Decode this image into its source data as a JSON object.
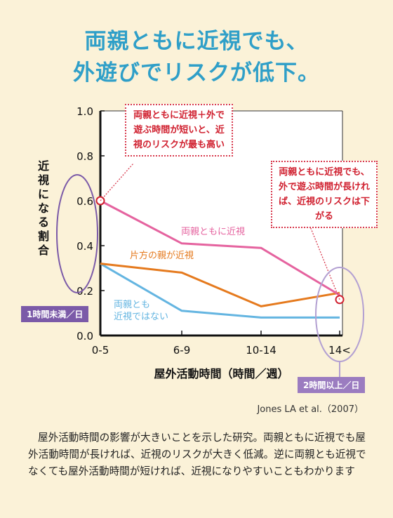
{
  "title_line1": "両親ともに近視でも、",
  "title_line2": "外遊びでリスクが低下。",
  "citation": "Jones LA et al.（2007）",
  "description": "屋外活動時間の影響が大きいことを示した研究。両親ともに近視でも屋外活動時間が長ければ、近視のリスクが大きく低減。逆に両親とも近視でなくても屋外活動時間が短ければ、近視になりやすいこともわかります",
  "callouts": {
    "high_risk": "両親ともに近視＋外で遊ぶ時間が短いと、近視のリスクが最も高い",
    "low_risk": "両親ともに近視でも、外で遊ぶ時間が長ければ、近視のリスクは下がる"
  },
  "badges": {
    "short": "1時間未満／日",
    "long": "2時間以上／日"
  },
  "chart_data": {
    "type": "line",
    "categories": [
      "0-5",
      "6-9",
      "10-14",
      "14<"
    ],
    "xlabel": "屋外活動時間（時間／週）",
    "ylabel": "近視になる割合",
    "ylim": [
      0.0,
      1.0
    ],
    "yticks": [
      "0.0",
      "0.2",
      "0.4",
      "0.6",
      "0.8",
      "1.0"
    ],
    "grid": false,
    "series": [
      {
        "name": "両親ともに近視",
        "color": "#e5639f",
        "values": [
          0.6,
          0.41,
          0.39,
          0.18
        ]
      },
      {
        "name": "片方の親が近視",
        "color": "#e57a1e",
        "values": [
          0.32,
          0.28,
          0.13,
          0.19
        ]
      },
      {
        "name": "両親とも近視ではない",
        "color": "#64b5e1",
        "values": [
          0.32,
          0.11,
          0.08,
          0.08
        ]
      }
    ]
  }
}
